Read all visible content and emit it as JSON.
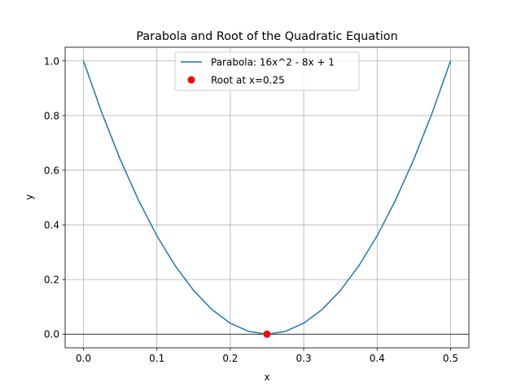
{
  "chart_data": {
    "type": "line",
    "title": "Parabola and Root of the Quadratic Equation",
    "xlabel": "x",
    "ylabel": "y",
    "xlim": [
      -0.025,
      0.525
    ],
    "ylim": [
      -0.05,
      1.05
    ],
    "xticks": [
      0.0,
      0.1,
      0.2,
      0.3,
      0.4,
      0.5
    ],
    "yticks": [
      0.0,
      0.2,
      0.4,
      0.6,
      0.8,
      1.0
    ],
    "xtick_labels": [
      "0.0",
      "0.1",
      "0.2",
      "0.3",
      "0.4",
      "0.5"
    ],
    "ytick_labels": [
      "0.0",
      "0.2",
      "0.4",
      "0.6",
      "0.8",
      "1.0"
    ],
    "grid": true,
    "legend_position": "top-center",
    "horizontal_reference_line_y": 0,
    "series": [
      {
        "name": "Parabola: 16x^2 - 8x + 1",
        "kind": "line",
        "color": "#1f77b4",
        "x": [
          0.0,
          0.025,
          0.05,
          0.075,
          0.1,
          0.125,
          0.15,
          0.175,
          0.2,
          0.225,
          0.25,
          0.275,
          0.3,
          0.325,
          0.35,
          0.375,
          0.4,
          0.425,
          0.45,
          0.475,
          0.5
        ],
        "y": [
          1.0,
          0.81,
          0.64,
          0.49,
          0.36,
          0.25,
          0.16,
          0.09,
          0.04,
          0.01,
          0.0,
          0.01,
          0.04,
          0.09,
          0.16,
          0.25,
          0.36,
          0.49,
          0.64,
          0.81,
          1.0
        ]
      },
      {
        "name": "Root at x=0.25",
        "kind": "scatter",
        "color": "#ff0000",
        "x": [
          0.25
        ],
        "y": [
          0.0
        ]
      }
    ]
  }
}
